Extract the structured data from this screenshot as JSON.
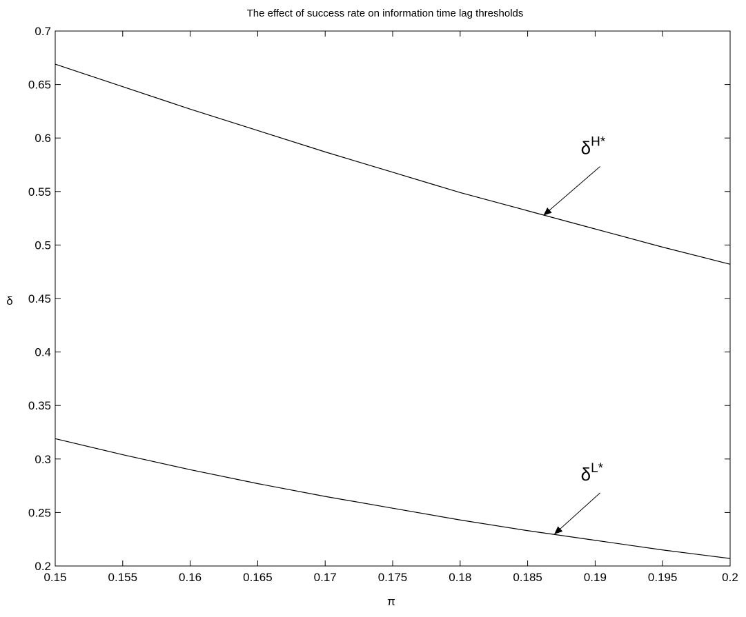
{
  "chart_data": {
    "type": "line",
    "title": "The effect of success rate on information time lag thresholds",
    "xlabel": "π",
    "ylabel": "δ",
    "xlim": [
      0.15,
      0.2
    ],
    "ylim": [
      0.2,
      0.7
    ],
    "x_ticks": [
      "0.15",
      "0.155",
      "0.16",
      "0.165",
      "0.17",
      "0.175",
      "0.18",
      "0.185",
      "0.19",
      "0.195",
      "0.2"
    ],
    "y_ticks": [
      "0.2",
      "0.25",
      "0.3",
      "0.35",
      "0.4",
      "0.45",
      "0.5",
      "0.55",
      "0.6",
      "0.65",
      "0.7"
    ],
    "grid": false,
    "legend": "none",
    "series": [
      {
        "x": [
          0.15,
          0.155,
          0.16,
          0.165,
          0.17,
          0.175,
          0.18,
          0.185,
          0.19,
          0.195,
          0.2
        ],
        "y": [
          0.669,
          0.648,
          0.627,
          0.607,
          0.587,
          0.568,
          0.549,
          0.532,
          0.515,
          0.498,
          0.482
        ]
      },
      {
        "x": [
          0.15,
          0.155,
          0.16,
          0.165,
          0.17,
          0.175,
          0.18,
          0.185,
          0.19,
          0.195,
          0.2
        ],
        "y": [
          0.319,
          0.304,
          0.29,
          0.277,
          0.265,
          0.254,
          0.243,
          0.233,
          0.224,
          0.215,
          0.207
        ]
      }
    ],
    "annotations": [
      {
        "base": "δ",
        "sup": "H*",
        "target": [
          0.1862,
          0.528
        ],
        "text_at": [
          0.1895,
          0.585
        ]
      },
      {
        "base": "δ",
        "sup": "L*",
        "target": [
          0.187,
          0.23
        ],
        "text_at": [
          0.1895,
          0.28
        ]
      }
    ]
  }
}
